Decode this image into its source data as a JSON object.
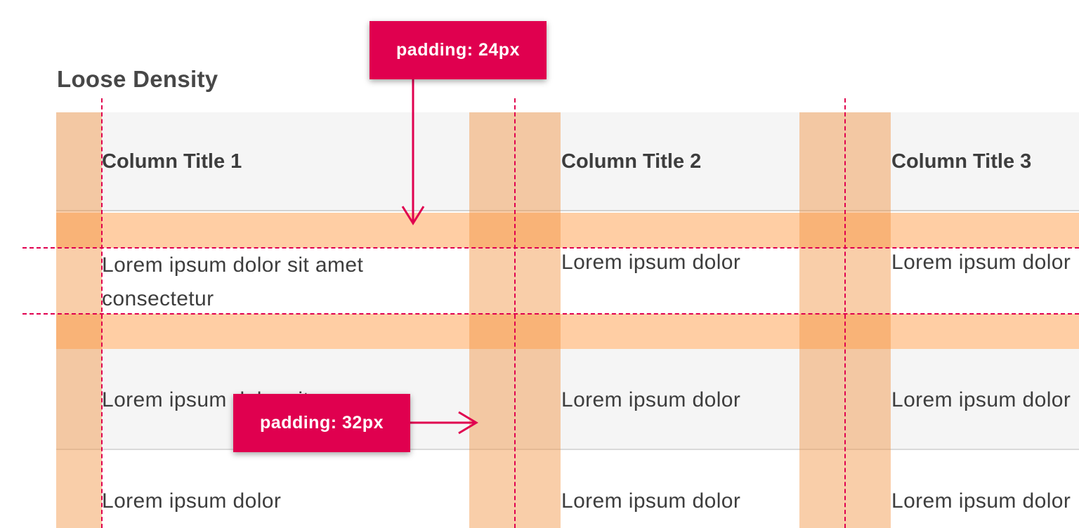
{
  "title": "Loose Density",
  "table": {
    "headers": [
      "Column Title 1",
      "Column Title 2",
      "Column Title 3"
    ],
    "rows": [
      [
        "Lorem ipsum dolor sit amet consectetur",
        "Lorem ipsum dolor",
        "Lorem ipsum dolor"
      ],
      [
        "Lorem ipsum dolor sit",
        "Lorem ipsum dolor",
        "Lorem ipsum dolor"
      ],
      [
        "Lorem ipsum dolor",
        "Lorem ipsum dolor",
        "Lorem ipsum dolor"
      ]
    ]
  },
  "callouts": {
    "vertical": "padding: 24px",
    "horizontal": "padding: 32px"
  },
  "colors": {
    "accent": "#e0004f",
    "padding_overlay": "#f5a05a",
    "row_alt_bg": "#f5f5f5"
  }
}
